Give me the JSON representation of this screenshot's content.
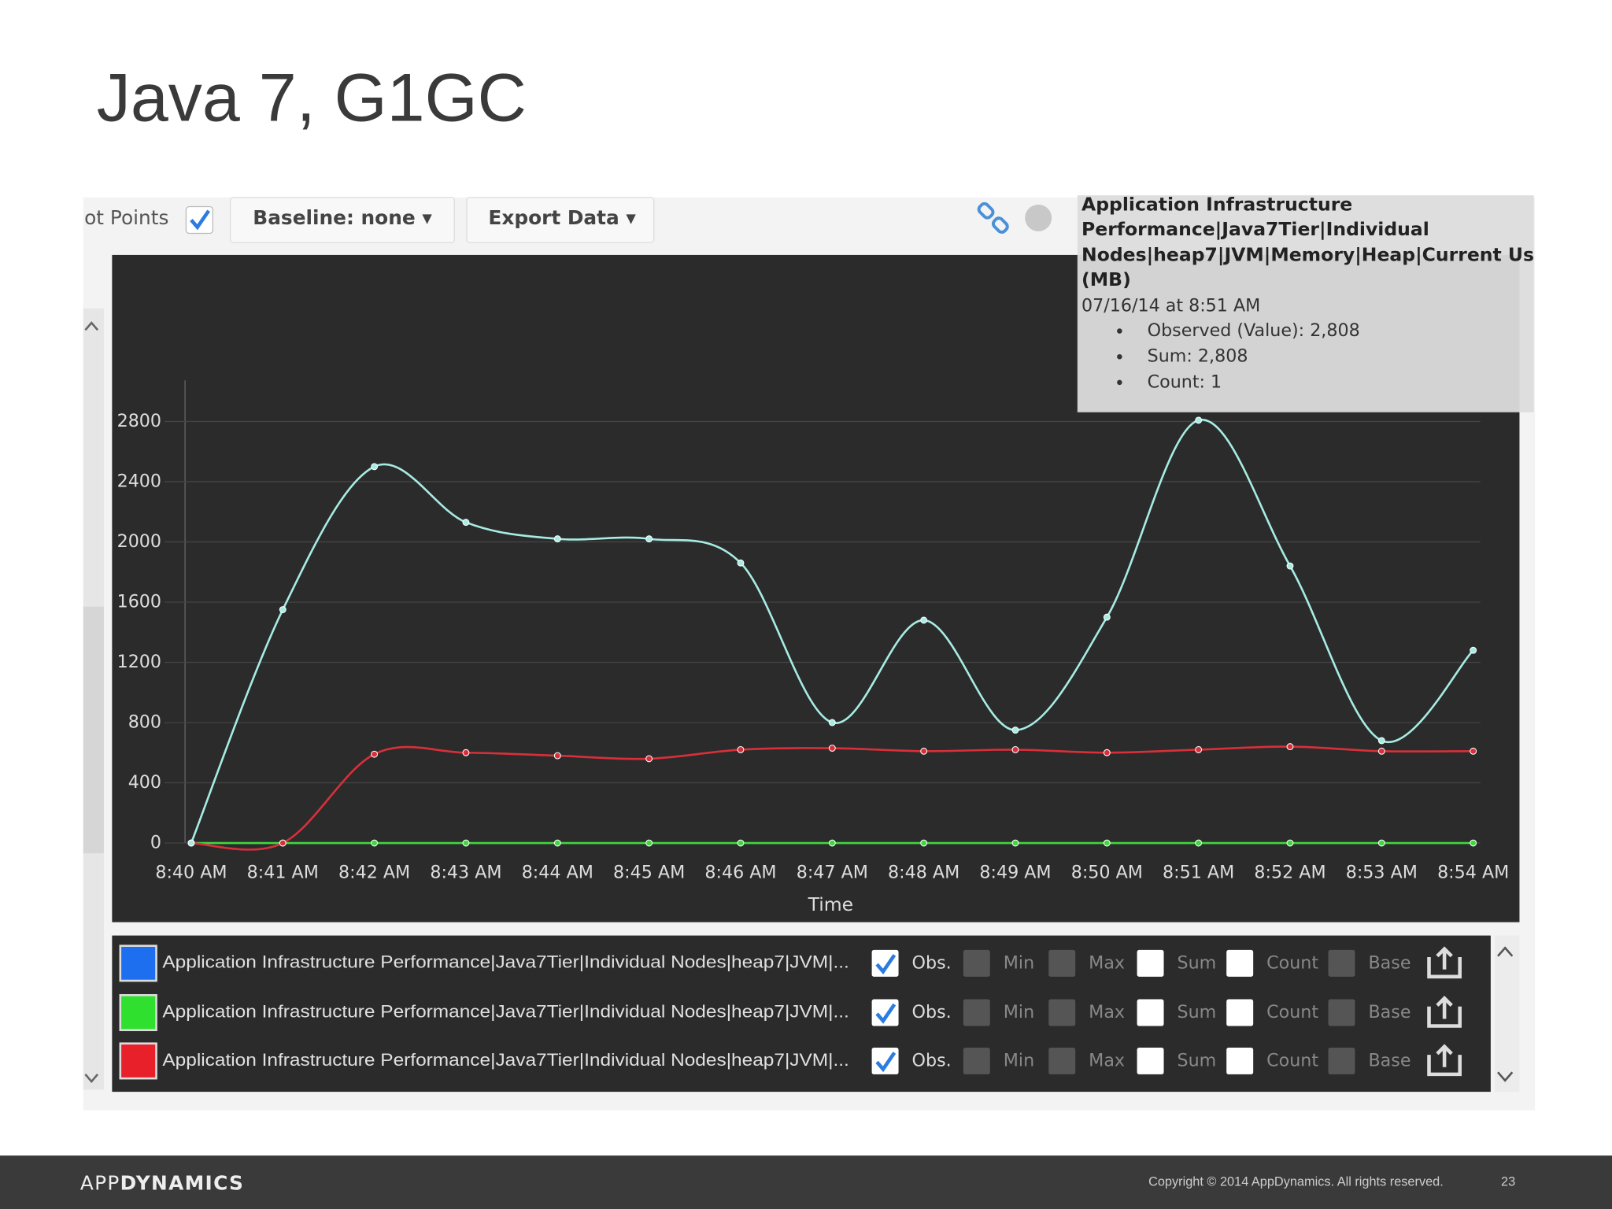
{
  "slide_title": "Java 7, G1GC",
  "toolbar": {
    "items": [
      "ot Points",
      "Baseline:  none ▾",
      "Export Data ▾"
    ]
  },
  "tooltip": {
    "title_lines": [
      "Application Infrastructure",
      "Performance|Java7Tier|Individual",
      "Nodes|heap7|JVM|Memory|Heap|Current Us",
      "(MB)"
    ],
    "date": "07/16/14 at 8:51 AM",
    "bullets": [
      "Observed (Value): 2,808",
      "Sum: 2,808",
      "Count: 1"
    ]
  },
  "legend_options": [
    "Obs.",
    "Min",
    "Max",
    "Sum",
    "Count",
    "Base"
  ],
  "chart_data": {
    "type": "line",
    "x_label": "Time",
    "categories": [
      "8:40 AM",
      "8:41 AM",
      "8:42 AM",
      "8:43 AM",
      "8:44 AM",
      "8:45 AM",
      "8:46 AM",
      "8:47 AM",
      "8:48 AM",
      "8:49 AM",
      "8:50 AM",
      "8:51 AM",
      "8:52 AM",
      "8:53 AM",
      "8:54 AM"
    ],
    "series": [
      {
        "name": "Application Infrastructure Performance|Java7Tier|Individual Nodes|heap7|JVM|...",
        "color": "#a6ece3",
        "swatch": "#1e6ff0",
        "values": [
          0,
          1550,
          2500,
          2130,
          2020,
          2020,
          1860,
          800,
          1480,
          750,
          1500,
          2808,
          1840,
          680,
          1280
        ]
      },
      {
        "name": "Application Infrastructure Performance|Java7Tier|Individual Nodes|heap7|JVM|...",
        "color": "#3fd83f",
        "swatch": "#2fe02f",
        "values": [
          0,
          0,
          0,
          0,
          0,
          0,
          0,
          0,
          0,
          0,
          0,
          0,
          0,
          0,
          0
        ]
      },
      {
        "name": "Application Infrastructure Performance|Java7Tier|Individual Nodes|heap7|JVM|...",
        "color": "#d8303a",
        "swatch": "#e8202a",
        "values": [
          0,
          0,
          590,
          600,
          580,
          560,
          620,
          630,
          610,
          620,
          600,
          620,
          640,
          610,
          610
        ]
      }
    ],
    "ylim": [
      0,
      3100
    ],
    "yticks": [
      0,
      400,
      800,
      1200,
      1600,
      2000,
      2400,
      2800
    ],
    "grid": true
  },
  "footer": {
    "logo": [
      "APP",
      "DYNAMICS"
    ],
    "copyright": "Copyright © 2014 AppDynamics. All rights reserved.",
    "page": "23"
  }
}
